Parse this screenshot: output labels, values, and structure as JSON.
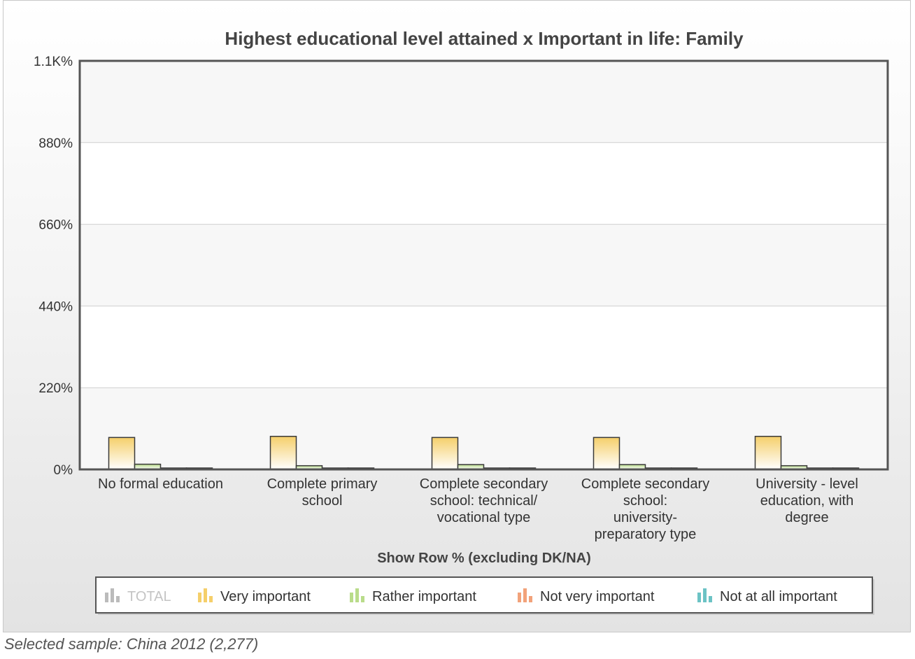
{
  "chart_data": {
    "type": "bar",
    "title": "Highest educational level attained x Important in life: Family",
    "xlabel": "Show Row % (excluding DK/NA)",
    "ylabel": "",
    "ylim": [
      0,
      1100
    ],
    "yticks": [
      {
        "value": 0,
        "label": "0%"
      },
      {
        "value": 220,
        "label": "220%"
      },
      {
        "value": 440,
        "label": "440%"
      },
      {
        "value": 660,
        "label": "660%"
      },
      {
        "value": 880,
        "label": "880%"
      },
      {
        "value": 1100,
        "label": "1.1K%"
      }
    ],
    "grid": true,
    "legend_position": "bottom",
    "categories": [
      [
        "No formal education"
      ],
      [
        "Complete primary",
        "school"
      ],
      [
        "Complete secondary",
        "school: technical/",
        "vocational type"
      ],
      [
        "Complete secondary",
        "school:",
        "university-",
        "preparatory type"
      ],
      [
        "University - level",
        "education, with",
        "degree"
      ]
    ],
    "series": [
      {
        "name": "TOTAL",
        "color": "#bbbbbb",
        "visible": false,
        "values": [
          null,
          null,
          null,
          null,
          null
        ]
      },
      {
        "name": "Very important",
        "color": "#f5cf6a",
        "visible": true,
        "values": [
          86,
          89,
          86,
          86,
          89
        ]
      },
      {
        "name": "Rather important",
        "color": "#b9dc8a",
        "visible": true,
        "values": [
          14,
          10,
          13,
          13,
          10
        ]
      },
      {
        "name": "Not very important",
        "color": "#f2a27a",
        "visible": true,
        "values": [
          1,
          1,
          1,
          1,
          1
        ]
      },
      {
        "name": "Not at all important",
        "color": "#6cc3c5",
        "visible": true,
        "values": [
          0,
          0,
          0,
          0,
          0
        ]
      }
    ]
  },
  "caption": "Selected sample: China 2012 (2,277)"
}
